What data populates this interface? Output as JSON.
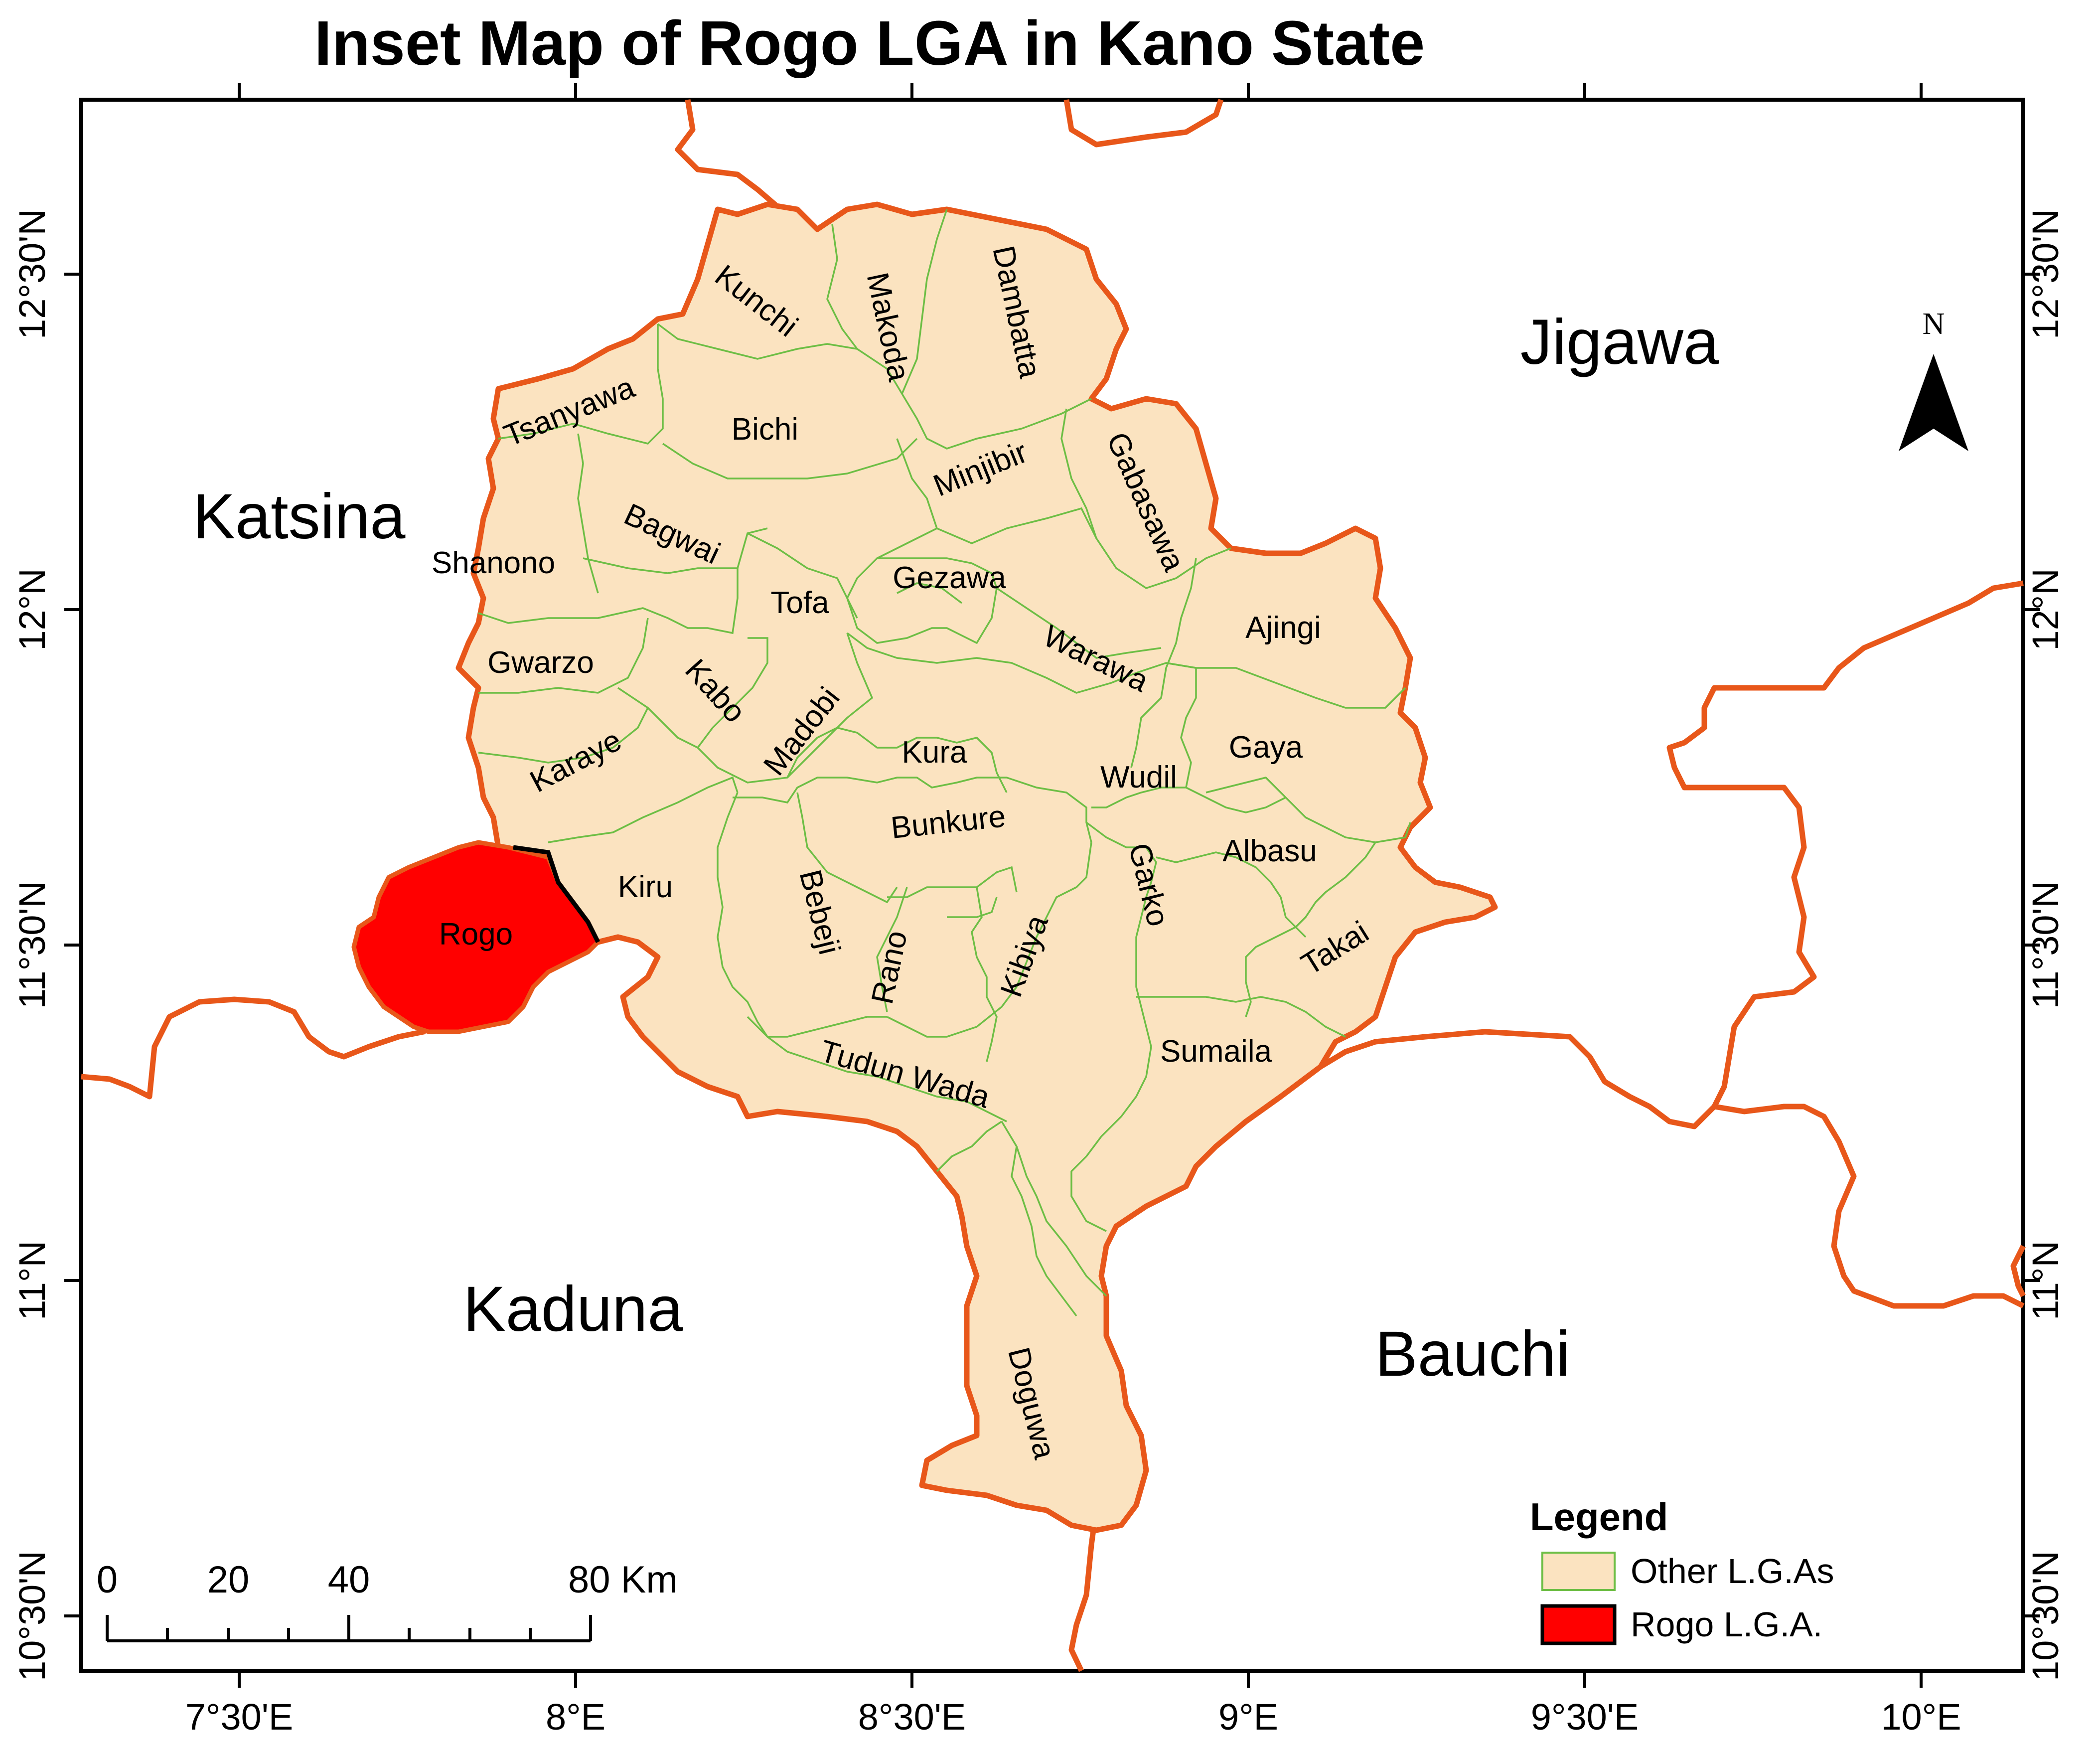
{
  "title": "Inset Map of Rogo LGA  in Kano State",
  "axes": {
    "longitude_ticks": [
      "7°30'E",
      "8°E",
      "8°30'E",
      "9°E",
      "9°30'E",
      "10°E"
    ],
    "latitude_ticks": [
      "12°30'N",
      "12°N",
      "11°30'N",
      "11°N",
      "10°30'N"
    ]
  },
  "states": [
    "Katsina",
    "Jigawa",
    "Kaduna",
    "Bauchi"
  ],
  "lgas": [
    "Kunchi",
    "Makoda",
    "Dambatta",
    "Tsanyawa",
    "Bichi",
    "Minjibir",
    "Gabasawa",
    "Bagwai",
    "Shanono",
    "Tofa",
    "Gezawa",
    "Ajingi",
    "Gwarzo",
    "Warawa",
    "Kabo",
    "Madobi",
    "Gaya",
    "Karaye",
    "Kura",
    "Wudil",
    "Bunkure",
    "Albasu",
    "Kiru",
    "Garko",
    "Bebeji",
    "Takai",
    "Rano",
    "Kibiya",
    "Sumaila",
    "Tudun Wada",
    "Doguwa"
  ],
  "highlighted_lga": "Rogo",
  "north_arrow": "N",
  "scale_bar": {
    "labels": [
      "0",
      "20",
      "40",
      "80 Km"
    ]
  },
  "legend": {
    "title": "Legend",
    "items": [
      {
        "label": "Other L.G.As",
        "color": "#FBE3C0",
        "border": "#6DBE45"
      },
      {
        "label": "Rogo L.G.A.",
        "color": "#FF0000",
        "border": "#000000"
      }
    ]
  },
  "colors": {
    "kano_fill": "#FBE3C0",
    "lga_boundary": "#6DBE45",
    "state_boundary": "#E8571A",
    "rogo_fill": "#FF0000"
  }
}
